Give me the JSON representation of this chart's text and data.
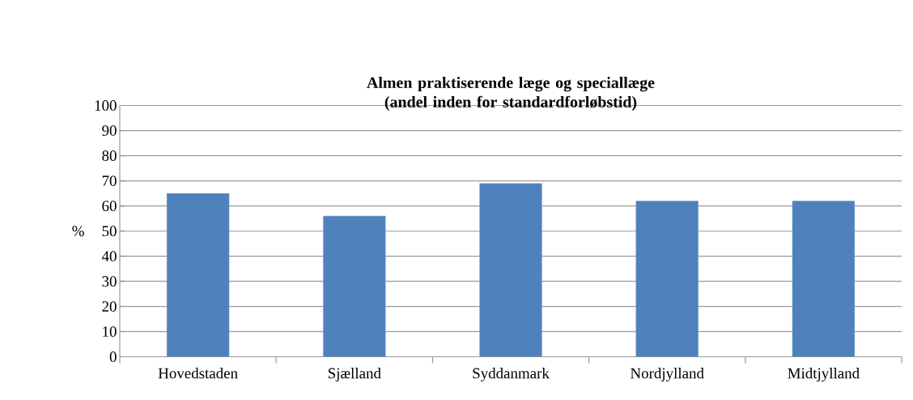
{
  "chart_data": {
    "type": "bar",
    "title": "**Almen praktiserende læge og speciallæge**\n**(andel inden for standardforløbstid)**",
    "ylabel": "%",
    "categories": [
      "Hovedstaden",
      "Sjælland",
      "Syddanmark",
      "Nordjylland",
      "Midtjylland"
    ],
    "values": [
      65,
      56,
      69,
      62,
      62
    ],
    "color": "#4f81bd",
    "ylim": [
      0,
      100
    ],
    "yticks": [
      0,
      10,
      20,
      30,
      40,
      50,
      60,
      70,
      80,
      90,
      100
    ],
    "grid": "y"
  }
}
